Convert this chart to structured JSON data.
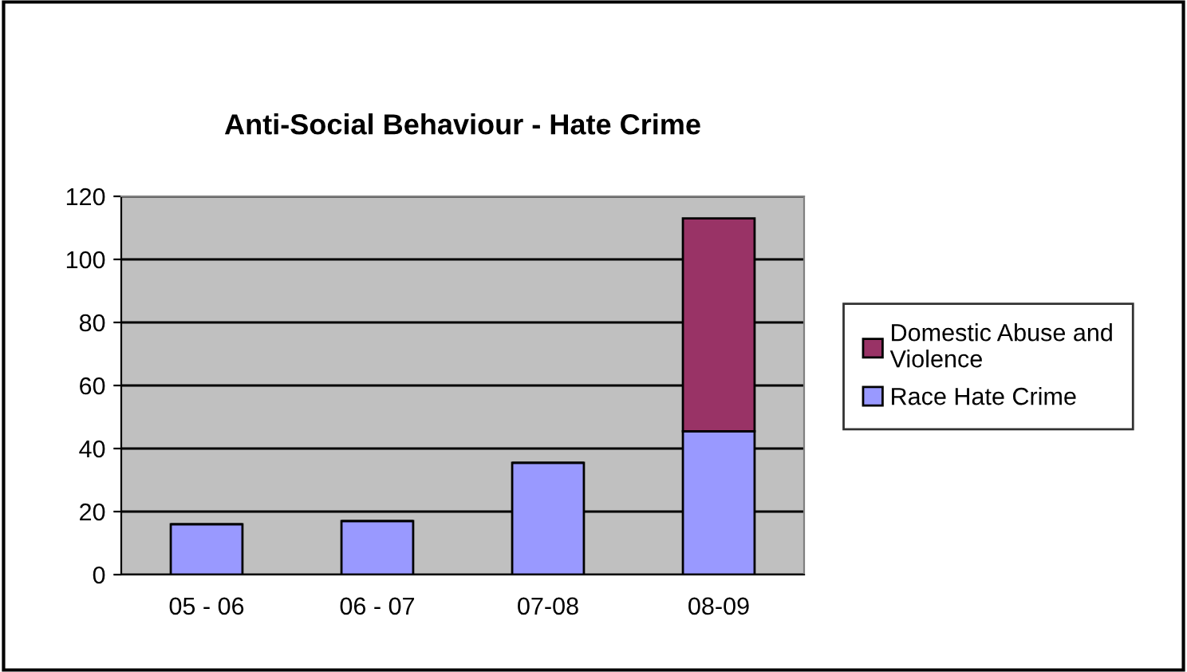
{
  "chart_data": {
    "type": "bar",
    "title": "Anti-Social Behaviour - Hate Crime",
    "categories": [
      "05 - 06",
      "06 - 07",
      "07-08",
      "08-09"
    ],
    "stacked": true,
    "series": [
      {
        "name": "Race Hate Crime",
        "color": "#9999ff",
        "values": [
          16,
          17,
          35.5,
          45.5
        ]
      },
      {
        "name": "Domestic Abuse and\nViolence",
        "color": "#993366",
        "values": [
          null,
          null,
          null,
          67.5
        ]
      }
    ],
    "ylim": [
      0,
      120
    ],
    "yticks": [
      0,
      20,
      40,
      60,
      80,
      100,
      120
    ],
    "grid": "y",
    "legend": "right"
  }
}
